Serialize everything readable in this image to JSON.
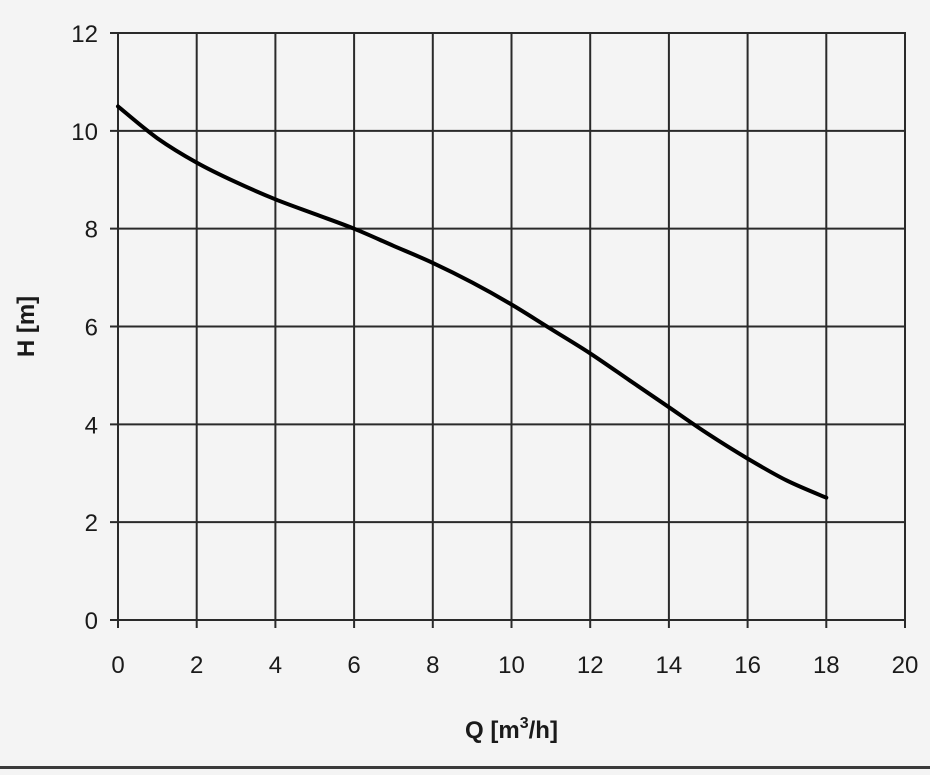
{
  "chart_data": {
    "type": "line",
    "title": "",
    "xlabel": "Q [m",
    "xlabel_sup": "3",
    "xlabel_tail": "/h]",
    "ylabel": "H [m]",
    "xlim": [
      0,
      20
    ],
    "ylim": [
      0,
      12
    ],
    "x_ticks": [
      0,
      2,
      4,
      6,
      8,
      10,
      12,
      14,
      16,
      18,
      20
    ],
    "y_ticks": [
      0,
      2,
      4,
      6,
      8,
      10,
      12
    ],
    "grid": true,
    "legend": "none",
    "line_color": "#000000",
    "grid_color": "#2a2a2a",
    "series": [
      {
        "x": [
          0,
          1,
          2,
          3,
          4,
          5,
          6,
          7,
          8,
          9,
          10,
          11,
          12,
          13,
          14,
          15,
          16,
          17,
          18
        ],
        "y": [
          10.5,
          9.85,
          9.35,
          8.95,
          8.6,
          8.3,
          8.0,
          7.65,
          7.3,
          6.9,
          6.45,
          5.95,
          5.45,
          4.9,
          4.35,
          3.8,
          3.3,
          2.85,
          2.5
        ]
      }
    ]
  }
}
